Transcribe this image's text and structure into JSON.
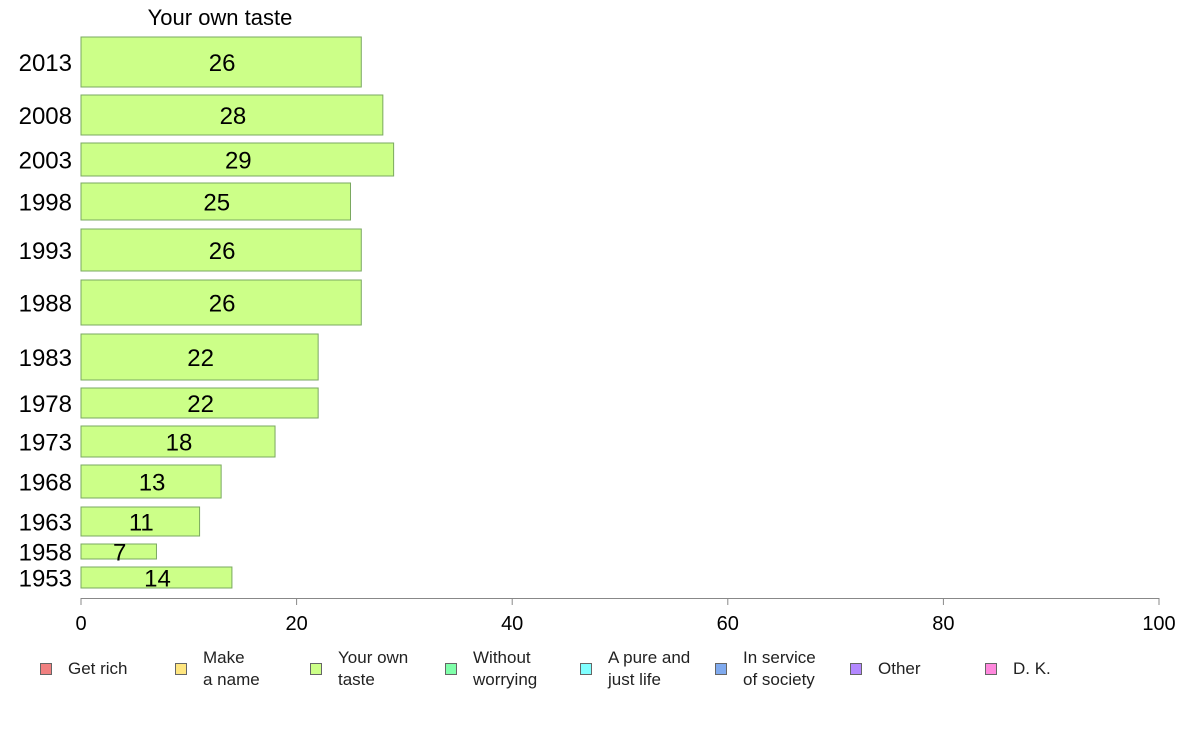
{
  "chart_data": {
    "type": "bar",
    "orientation": "horizontal",
    "title": "Your own taste",
    "categories": [
      "2013",
      "2008",
      "2003",
      "1998",
      "1993",
      "1988",
      "1983",
      "1978",
      "1973",
      "1968",
      "1963",
      "1958",
      "1953"
    ],
    "series": [
      {
        "name": "Your own taste",
        "values": [
          26,
          28,
          29,
          25,
          26,
          26,
          22,
          22,
          18,
          13,
          11,
          7,
          14
        ],
        "color": "#ccff88"
      }
    ],
    "xlim": [
      0,
      100
    ],
    "xticks": [
      0,
      20,
      40,
      60,
      80,
      100
    ],
    "grid": false,
    "legend_position": "bottom"
  },
  "legend": {
    "items": [
      {
        "label": "Get rich",
        "color": "#f08080"
      },
      {
        "label": "Make\na name",
        "color": "#ffe680"
      },
      {
        "label": "Your own\ntaste",
        "color": "#ccff88"
      },
      {
        "label": "Without\nworrying",
        "color": "#80ffaa"
      },
      {
        "label": "A pure and\njust life",
        "color": "#80ffff"
      },
      {
        "label": "In service\nof society",
        "color": "#80aaee"
      },
      {
        "label": "Other",
        "color": "#b388ff"
      },
      {
        "label": "D. K.",
        "color": "#ff88dd"
      }
    ]
  }
}
